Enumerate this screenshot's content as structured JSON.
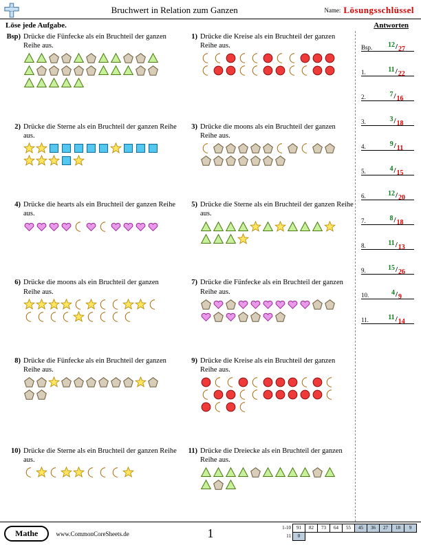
{
  "header": {
    "title": "Bruchwert in Relation zum Ganzen",
    "name_label": "Name:",
    "key_label": "Lösungsschlüssel"
  },
  "subhead": {
    "instruction": "Löse jede Aufgabe.",
    "answers_label": "Antworten"
  },
  "shape_colors": {
    "pentagon": {
      "fill": "#d8cdb8",
      "stroke": "#6b5a3a"
    },
    "triangle": {
      "fill": "#c8f09a",
      "stroke": "#4a7a12"
    },
    "circle": {
      "fill": "#ef3a3a",
      "stroke": "#8a0e0e"
    },
    "moon": {
      "fill": "#f5b53a",
      "stroke": "#a86a0a"
    },
    "star": {
      "fill": "#ffe560",
      "stroke": "#b58a00"
    },
    "square": {
      "fill": "#55c8ef",
      "stroke": "#0a6a9a"
    },
    "heart": {
      "fill": "#e89ae8",
      "stroke": "#9a2a9a"
    }
  },
  "problems": [
    {
      "num": "Bsp)",
      "text": "Drücke die Fünfecke als ein Bruchteil der ganzen Reihe aus.",
      "shapes": [
        "triangle",
        "triangle",
        "pentagon",
        "pentagon",
        "triangle",
        "pentagon",
        "triangle",
        "triangle",
        "pentagon",
        "pentagon",
        "triangle",
        "triangle",
        "pentagon",
        "pentagon",
        "pentagon",
        "pentagon",
        "pentagon",
        "triangle",
        "triangle",
        "triangle",
        "pentagon",
        "pentagon",
        "triangle",
        "triangle",
        "triangle",
        "triangle",
        "triangle"
      ]
    },
    {
      "num": "1)",
      "text": "Drücke die Kreise als ein Bruchteil der ganzen Reihe aus.",
      "shapes": [
        "moon",
        "moon",
        "circle",
        "moon",
        "moon",
        "circle",
        "moon",
        "moon",
        "circle",
        "circle",
        "circle",
        "moon",
        "circle",
        "circle",
        "moon",
        "moon",
        "circle",
        "circle",
        "moon",
        "moon",
        "circle",
        "circle"
      ]
    },
    {
      "num": "2)",
      "text": "Drücke die Sterne als ein Bruchteil der ganzen Reihe aus.",
      "shapes": [
        "star",
        "star",
        "square",
        "square",
        "square",
        "square",
        "square",
        "star",
        "square",
        "square",
        "square",
        "star",
        "star",
        "star",
        "square",
        "star"
      ]
    },
    {
      "num": "3)",
      "text": "Drücke die moons als ein Bruchteil der ganzen Reihe aus.",
      "shapes": [
        "moon",
        "pentagon",
        "pentagon",
        "pentagon",
        "pentagon",
        "pentagon",
        "moon",
        "pentagon",
        "moon",
        "pentagon",
        "pentagon",
        "pentagon",
        "pentagon",
        "pentagon",
        "pentagon",
        "pentagon",
        "pentagon",
        "pentagon"
      ]
    },
    {
      "num": "4)",
      "text": "Drücke die hearts als ein Bruchteil der ganzen Reihe aus.",
      "shapes": [
        "heart",
        "heart",
        "heart",
        "heart",
        "moon",
        "heart",
        "moon",
        "heart",
        "heart",
        "heart",
        "heart"
      ]
    },
    {
      "num": "5)",
      "text": "Drücke die Sterne als ein Bruchteil der ganzen Reihe aus.",
      "shapes": [
        "triangle",
        "triangle",
        "triangle",
        "triangle",
        "star",
        "triangle",
        "star",
        "triangle",
        "triangle",
        "triangle",
        "star",
        "triangle",
        "triangle",
        "triangle",
        "star"
      ]
    },
    {
      "num": "6)",
      "text": "Drücke die moons als ein Bruchteil der ganzen Reihe aus.",
      "shapes": [
        "star",
        "star",
        "star",
        "star",
        "moon",
        "star",
        "moon",
        "moon",
        "star",
        "star",
        "moon",
        "moon",
        "moon",
        "moon",
        "moon",
        "star",
        "moon",
        "moon",
        "moon",
        "moon"
      ]
    },
    {
      "num": "7)",
      "text": "Drücke die Fünfecke als ein Bruchteil der ganzen Reihe aus.",
      "shapes": [
        "pentagon",
        "heart",
        "pentagon",
        "heart",
        "heart",
        "heart",
        "heart",
        "heart",
        "heart",
        "pentagon",
        "pentagon",
        "heart",
        "pentagon",
        "heart",
        "pentagon",
        "pentagon",
        "heart",
        "pentagon"
      ]
    },
    {
      "num": "8)",
      "text": "Drücke die Fünfecke als ein Bruchteil der ganzen Reihe aus.",
      "shapes": [
        "pentagon",
        "pentagon",
        "star",
        "pentagon",
        "pentagon",
        "pentagon",
        "pentagon",
        "pentagon",
        "pentagon",
        "star",
        "pentagon",
        "pentagon",
        "pentagon"
      ]
    },
    {
      "num": "9)",
      "text": "Drücke die Kreise als ein Bruchteil der ganzen Reihe aus.",
      "shapes": [
        "circle",
        "moon",
        "moon",
        "circle",
        "moon",
        "circle",
        "circle",
        "circle",
        "moon",
        "circle",
        "moon",
        "moon",
        "circle",
        "circle",
        "moon",
        "moon",
        "circle",
        "circle",
        "circle",
        "circle",
        "circle",
        "moon",
        "circle",
        "moon",
        "circle",
        "moon"
      ]
    },
    {
      "num": "10)",
      "text": "Drücke die Sterne als ein Bruchteil der ganzen Reihe aus.",
      "shapes": [
        "moon",
        "star",
        "moon",
        "star",
        "star",
        "moon",
        "moon",
        "moon",
        "star"
      ]
    },
    {
      "num": "11)",
      "text": "Drücke die Dreiecke als ein Bruchteil der ganzen Reihe aus.",
      "shapes": [
        "triangle",
        "triangle",
        "triangle",
        "triangle",
        "pentagon",
        "triangle",
        "triangle",
        "triangle",
        "triangle",
        "pentagon",
        "triangle",
        "triangle",
        "pentagon",
        "triangle"
      ]
    }
  ],
  "answers": [
    {
      "label": "Bsp.",
      "n": "12",
      "d": "27"
    },
    {
      "label": "1.",
      "n": "11",
      "d": "22"
    },
    {
      "label": "2.",
      "n": "7",
      "d": "16"
    },
    {
      "label": "3.",
      "n": "3",
      "d": "18"
    },
    {
      "label": "4.",
      "n": "9",
      "d": "11"
    },
    {
      "label": "5.",
      "n": "4",
      "d": "15"
    },
    {
      "label": "6.",
      "n": "12",
      "d": "20"
    },
    {
      "label": "7.",
      "n": "8",
      "d": "18"
    },
    {
      "label": "8.",
      "n": "11",
      "d": "13"
    },
    {
      "label": "9.",
      "n": "15",
      "d": "26"
    },
    {
      "label": "10.",
      "n": "4",
      "d": "9"
    },
    {
      "label": "11.",
      "n": "11",
      "d": "14"
    }
  ],
  "footer": {
    "subject": "Mathe",
    "site": "www.CommonCoreSheets.de",
    "page": "1",
    "score_rows": [
      {
        "label": "1-10",
        "cells": [
          "91",
          "82",
          "73",
          "64",
          "55",
          "45",
          "36",
          "27",
          "18",
          "9"
        ],
        "shade_from": 5
      },
      {
        "label": "11",
        "cells": [
          "0"
        ],
        "shade_from": 0
      }
    ]
  }
}
